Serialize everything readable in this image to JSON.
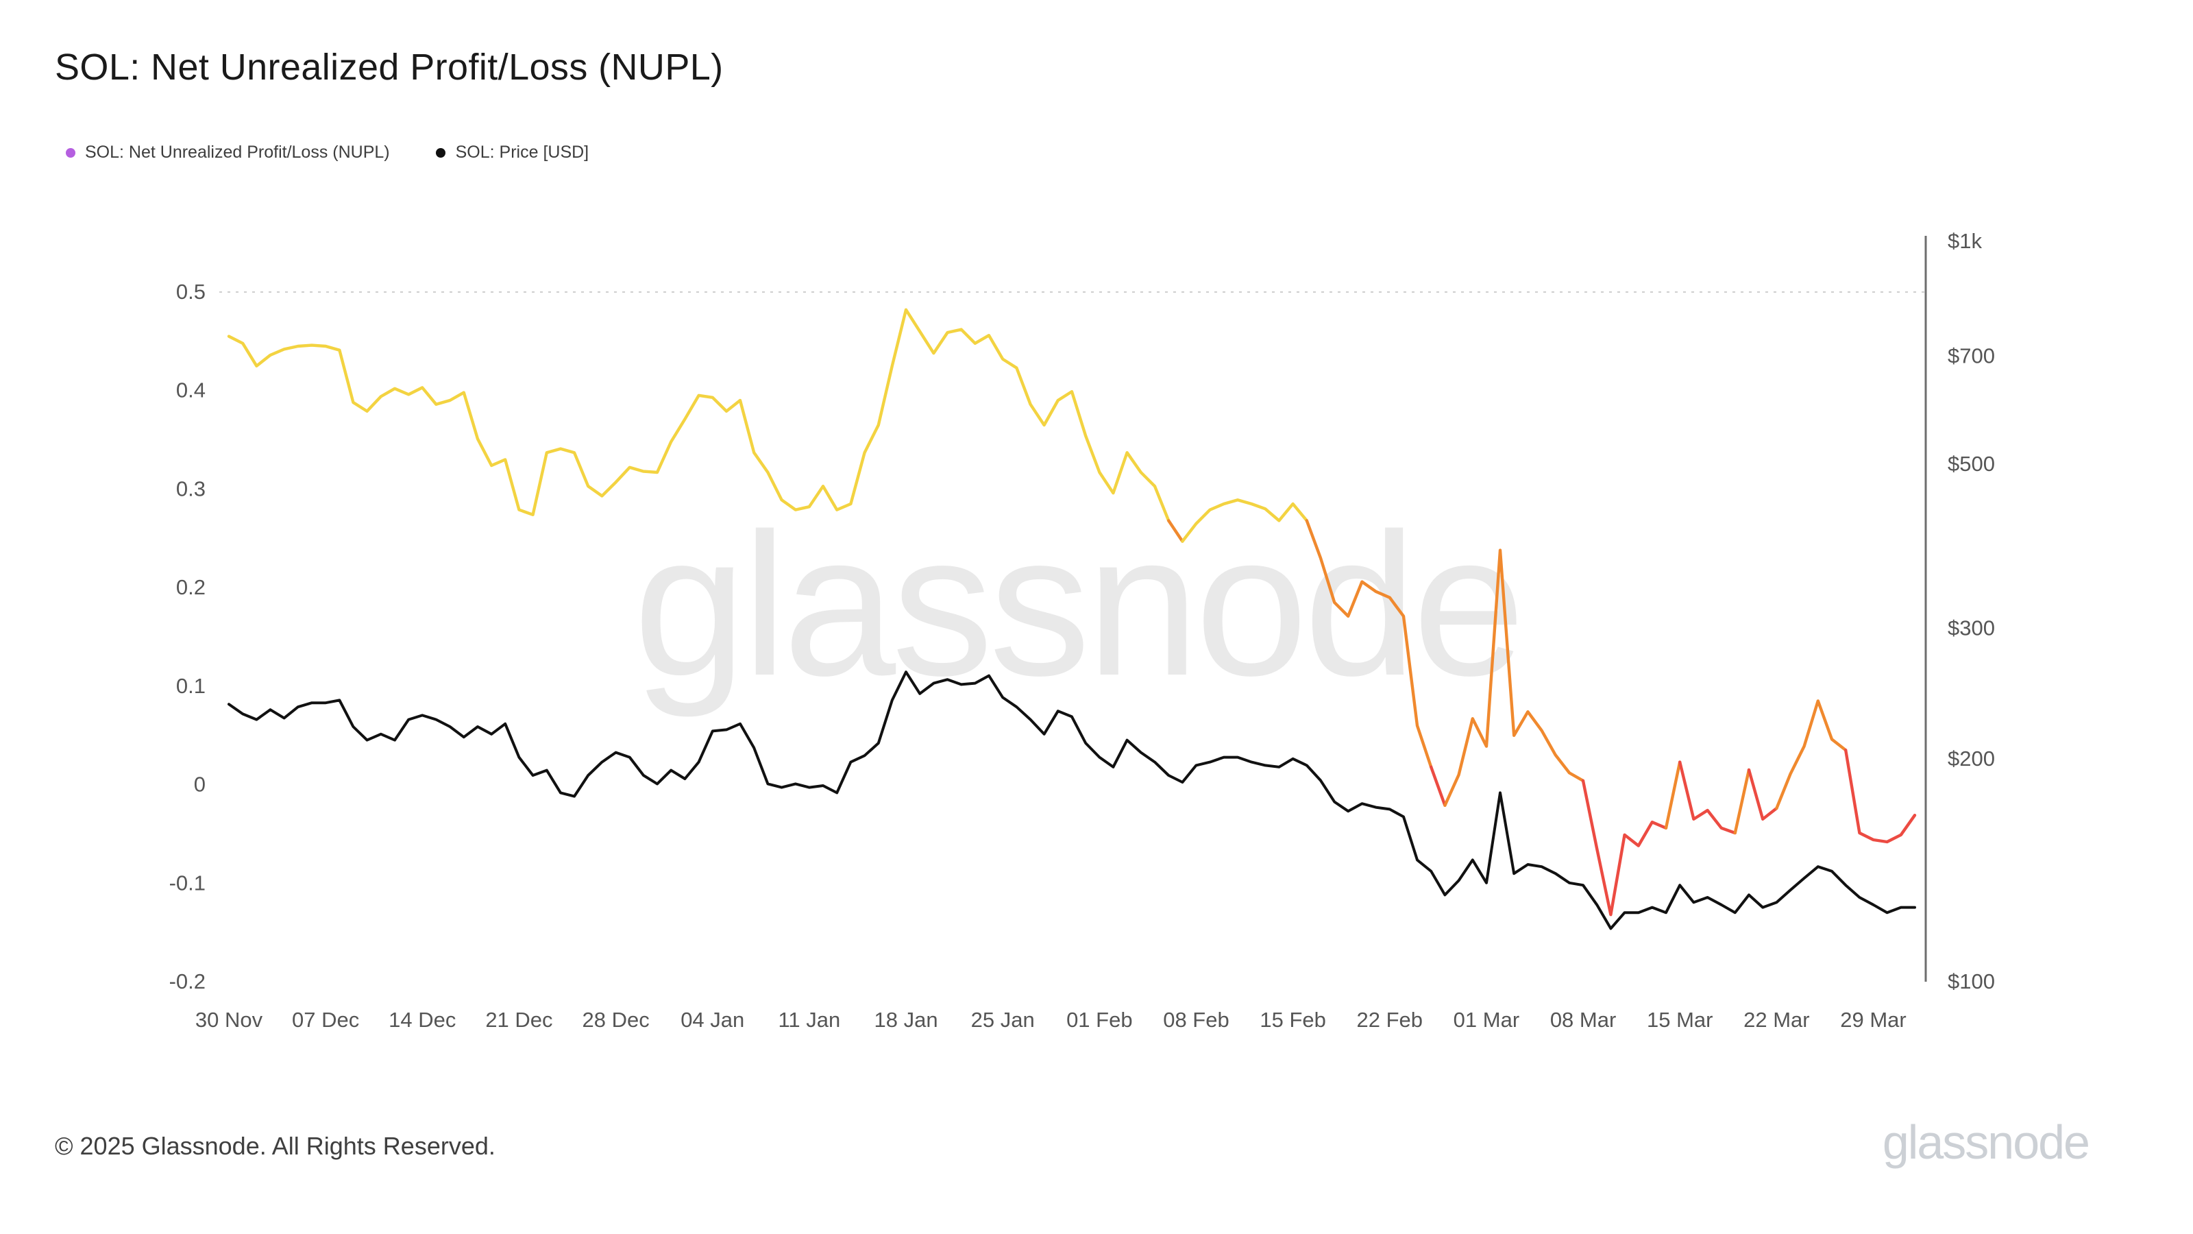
{
  "page": {
    "title": "SOL: Net Unrealized Profit/Loss (NUPL)",
    "watermark": "glassnode",
    "footer_copyright": "© 2025 Glassnode. All Rights Reserved.",
    "brand_wordmark": "glassnode"
  },
  "legend": [
    {
      "label": "SOL: Net Unrealized Profit/Loss (NUPL)",
      "color": "#b55fe0"
    },
    {
      "label": "SOL: Price [USD]",
      "color": "#111111"
    }
  ],
  "chart_data": {
    "type": "line",
    "title": "SOL: Net Unrealized Profit/Loss (NUPL)",
    "x_unit": "day",
    "grid": "dotted line at 0.5 only",
    "x_axis": {
      "ticks": [
        {
          "day": 0,
          "label": "30 Nov"
        },
        {
          "day": 7,
          "label": "07 Dec"
        },
        {
          "day": 14,
          "label": "14 Dec"
        },
        {
          "day": 21,
          "label": "21 Dec"
        },
        {
          "day": 28,
          "label": "28 Dec"
        },
        {
          "day": 35,
          "label": "04 Jan"
        },
        {
          "day": 42,
          "label": "11 Jan"
        },
        {
          "day": 49,
          "label": "18 Jan"
        },
        {
          "day": 56,
          "label": "25 Jan"
        },
        {
          "day": 63,
          "label": "01 Feb"
        },
        {
          "day": 70,
          "label": "08 Feb"
        },
        {
          "day": 77,
          "label": "15 Feb"
        },
        {
          "day": 84,
          "label": "22 Feb"
        },
        {
          "day": 91,
          "label": "01 Mar"
        },
        {
          "day": 98,
          "label": "08 Mar"
        },
        {
          "day": 105,
          "label": "15 Mar"
        },
        {
          "day": 112,
          "label": "22 Mar"
        },
        {
          "day": 119,
          "label": "29 Mar"
        }
      ]
    },
    "left_axis": {
      "min": -0.2,
      "max": 0.5,
      "scale": "linear",
      "ticks": [
        {
          "value": 0.5,
          "label": "0.5"
        },
        {
          "value": 0.4,
          "label": "0.4"
        },
        {
          "value": 0.3,
          "label": "0.3"
        },
        {
          "value": 0.2,
          "label": "0.2"
        },
        {
          "value": 0.1,
          "label": "0.1"
        },
        {
          "value": 0,
          "label": "0"
        },
        {
          "value": -0.1,
          "label": "-0.1"
        },
        {
          "value": -0.2,
          "label": "-0.2"
        }
      ]
    },
    "right_axis": {
      "scale": "log",
      "ticks": [
        {
          "value": 1000,
          "label": "$1k"
        },
        {
          "value": 700,
          "label": "$700"
        },
        {
          "value": 500,
          "label": "$500"
        },
        {
          "value": 300,
          "label": "$300"
        },
        {
          "value": 200,
          "label": "$200"
        },
        {
          "value": 100,
          "label": "$100"
        }
      ]
    },
    "series": [
      {
        "name": "SOL: Net Unrealized Profit/Loss (NUPL)",
        "axis": "left",
        "stroke_width": 2.2,
        "color_bands": [
          {
            "below": 0,
            "color": "#ec4b42",
            "zone": "capitulation"
          },
          {
            "below": 0.25,
            "color": "#f0892e",
            "zone": "hope-fear"
          },
          {
            "below": null,
            "color": "#f3d341",
            "zone": "optimism-belief"
          }
        ],
        "values": [
          0.455,
          0.448,
          0.425,
          0.436,
          0.442,
          0.445,
          0.446,
          0.445,
          0.441,
          0.388,
          0.379,
          0.394,
          0.402,
          0.396,
          0.403,
          0.386,
          0.39,
          0.398,
          0.351,
          0.324,
          0.33,
          0.279,
          0.274,
          0.337,
          0.341,
          0.337,
          0.303,
          0.293,
          0.307,
          0.322,
          0.318,
          0.317,
          0.348,
          0.371,
          0.395,
          0.393,
          0.379,
          0.39,
          0.337,
          0.317,
          0.289,
          0.279,
          0.282,
          0.303,
          0.279,
          0.285,
          0.337,
          0.365,
          0.425,
          0.482,
          0.46,
          0.438,
          0.459,
          0.462,
          0.448,
          0.456,
          0.432,
          0.423,
          0.386,
          0.365,
          0.39,
          0.399,
          0.354,
          0.317,
          0.296,
          0.337,
          0.317,
          0.303,
          0.268,
          0.247,
          0.265,
          0.279,
          0.285,
          0.289,
          0.285,
          0.28,
          0.268,
          0.285,
          0.268,
          0.23,
          0.185,
          0.171,
          0.206,
          0.196,
          0.19,
          0.171,
          0.06,
          0.018,
          -0.021,
          0.01,
          0.067,
          0.039,
          0.238,
          0.05,
          0.074,
          0.055,
          0.03,
          0.012,
          0.004,
          -0.065,
          -0.132,
          -0.051,
          -0.062,
          -0.038,
          -0.044,
          0.023,
          -0.035,
          -0.026,
          -0.044,
          -0.049,
          0.015,
          -0.035,
          -0.024,
          0.011,
          0.039,
          0.085,
          0.046,
          0.035,
          -0.049,
          -0.056,
          -0.058,
          -0.051,
          -0.031
        ]
      },
      {
        "name": "SOL: Price [USD]",
        "axis": "right",
        "color": "#111111",
        "stroke_width": 2,
        "values": [
          237,
          230,
          226,
          233,
          227,
          235,
          238,
          238,
          240,
          221,
          212,
          216,
          212,
          226,
          229,
          226,
          221,
          214,
          221,
          216,
          223,
          201,
          190,
          193,
          180,
          178,
          190,
          198,
          204,
          201,
          190,
          185,
          193,
          188,
          198,
          218,
          219,
          223,
          207,
          185,
          183,
          185,
          183,
          184,
          180,
          198,
          202,
          210,
          240,
          262,
          245,
          253,
          256,
          252,
          253,
          259,
          242,
          235,
          226,
          216,
          232,
          228,
          210,
          201,
          195,
          212,
          204,
          198,
          190,
          186,
          196,
          198,
          201,
          201,
          198,
          196,
          195,
          200,
          196,
          187,
          175,
          170,
          174,
          172,
          171,
          167,
          146,
          141,
          131,
          137,
          146,
          136,
          180,
          140,
          144,
          143,
          140,
          136,
          135,
          127,
          118,
          124,
          124,
          126,
          124,
          135,
          128,
          130,
          127,
          124,
          131,
          126,
          128,
          133,
          138,
          143,
          141,
          135,
          130,
          127,
          124,
          126,
          126
        ]
      }
    ]
  }
}
